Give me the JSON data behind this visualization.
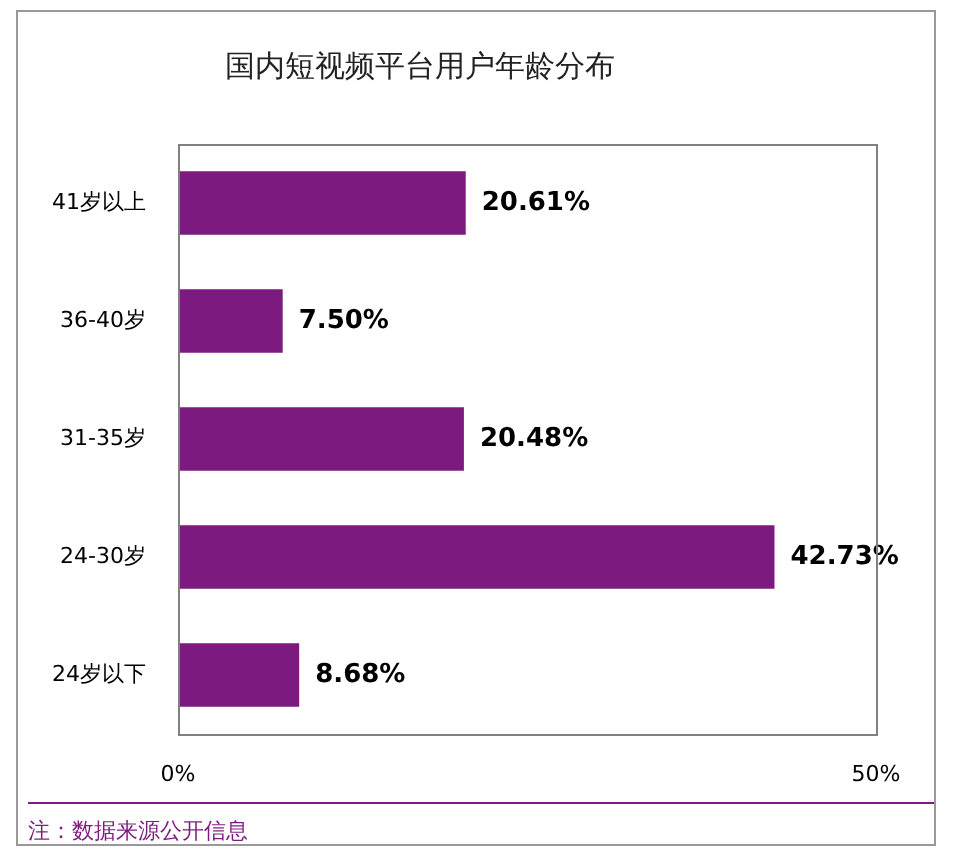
{
  "chart_data": {
    "type": "bar",
    "orientation": "horizontal",
    "title": "国内短视频平台用户年龄分布",
    "categories": [
      "41岁以上",
      "36-40岁",
      "31-35岁",
      "24-30岁",
      "24岁以下"
    ],
    "values": [
      20.61,
      7.5,
      20.48,
      42.73,
      8.68
    ],
    "value_labels": [
      "20.61%",
      "7.50%",
      "20.48%",
      "42.73%",
      "8.68%"
    ],
    "color": "#7d1a7f",
    "xlim": [
      0,
      50
    ],
    "xticks": [
      {
        "value": 0,
        "label": "0%"
      },
      {
        "value": 50,
        "label": "50%"
      }
    ],
    "grid": false,
    "legend": false,
    "annotations": [
      "注：数据来源公开信息"
    ]
  }
}
